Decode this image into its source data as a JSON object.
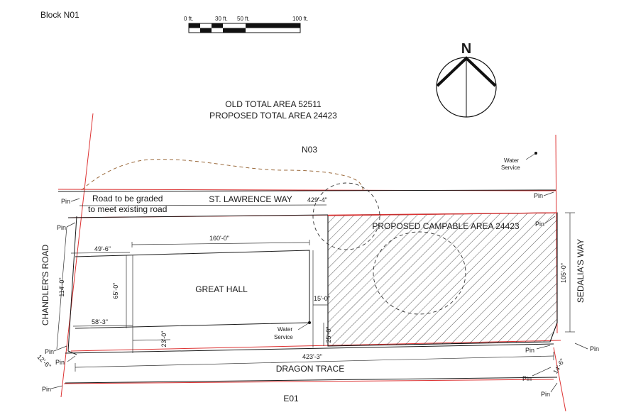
{
  "block_title": "Block N01",
  "scale_bar": {
    "labels": [
      "0 ft.",
      "30 ft.",
      "50 ft.",
      "100 ft."
    ]
  },
  "north_label": "N",
  "area_text": {
    "line1": "OLD     TOTAL AREA 52511",
    "line2": "PROPOSED TOTAL AREA  24423"
  },
  "parcels": {
    "north": "N03",
    "south": "E01"
  },
  "roads": {
    "st_lawrence": "ST. LAWRENCE WAY",
    "chandlers": "CHANDLER'S ROAD",
    "sedalias": "SEDALIA'S WAY",
    "dragon": "DRAGON TRACE"
  },
  "notes": {
    "grade_line1": "Road to be graded",
    "grade_line2": "to meet existing road"
  },
  "building": "GREAT HALL",
  "campable_area": "PROPOSED CAMPABLE AREA  24423",
  "water_service": {
    "line1": "Water",
    "line2": "Service"
  },
  "pin_label": "Pin",
  "dimensions": {
    "north_edge": "429'-4\"",
    "south_edge": "423'-3\"",
    "hall_width": "160'-0\"",
    "hall_height": "65'-0\"",
    "west_top": "49'-6\"",
    "west_bottom": "58'-3\"",
    "hall_to_south": "23'-0\"",
    "gap_width": "15'-0\"",
    "gap_height": "25'-0\"",
    "west_edge": "114'-0\"",
    "east_edge": "105'-0\"",
    "sw_corner": "12'-6\"",
    "se_corner": "14'-6\""
  }
}
